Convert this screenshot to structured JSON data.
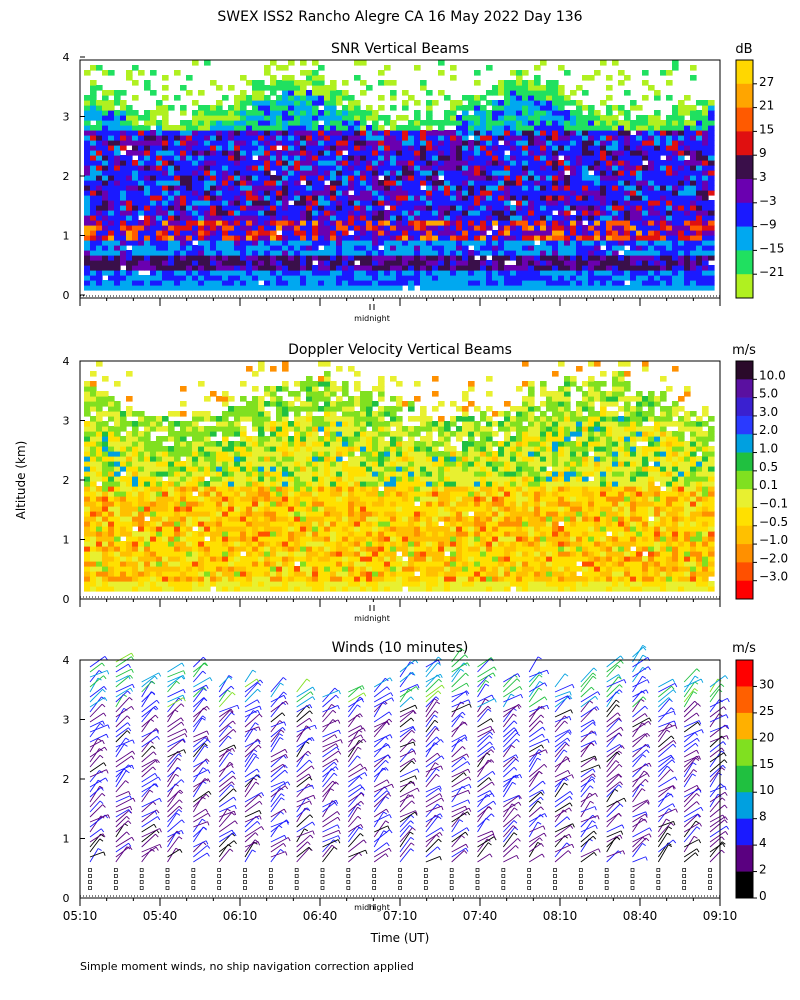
{
  "title": "SWEX ISS2 Rancho Alegre CA  16 May 2022 Day 136",
  "ylabel": "Altitude (km)",
  "xlabel": "Time (UT)",
  "midnight_label": "midnight",
  "footnote": "Simple moment winds, no ship navigation correction applied",
  "chart_data": [
    {
      "type": "heatmap",
      "title": "SNR Vertical Beams",
      "ylim": [
        0,
        4
      ],
      "yticks": [
        "0",
        "1",
        "2",
        "3",
        "4"
      ],
      "colorbar": {
        "unit": "dB",
        "labels": [
          "27",
          "21",
          "15",
          "9",
          "3",
          "−3",
          "−9",
          "−15",
          "−21"
        ],
        "colors": [
          "#ffd700",
          "#ffa500",
          "#ff5a00",
          "#e01010",
          "#3a0f4a",
          "#6a00b0",
          "#1a1aff",
          "#00a8f0",
          "#20e060",
          "#b0f020"
        ]
      }
    },
    {
      "type": "heatmap",
      "title": "Doppler Velocity Vertical Beams",
      "ylim": [
        0,
        4
      ],
      "yticks": [
        "0",
        "1",
        "2",
        "3",
        "4"
      ],
      "colorbar": {
        "unit": "m/s",
        "labels": [
          "10.0",
          "5.0",
          "3.0",
          "2.0",
          "1.0",
          "0.5",
          "0.1",
          "−0.1",
          "−0.5",
          "−1.0",
          "−2.0",
          "−3.0"
        ],
        "colors": [
          "#2a0a2a",
          "#5a10a0",
          "#3a20d0",
          "#2a3aff",
          "#00a0e0",
          "#20c040",
          "#80e020",
          "#e8f030",
          "#ffe000",
          "#ffc000",
          "#ff9000",
          "#ff5000",
          "#ff0000"
        ]
      }
    },
    {
      "type": "barbs",
      "title": "Winds (10 minutes)",
      "ylim": [
        0,
        4
      ],
      "yticks": [
        "0",
        "1",
        "2",
        "3",
        "4"
      ],
      "xticks": [
        "05:10",
        "05:40",
        "06:10",
        "06:40",
        "07:10",
        "07:40",
        "08:10",
        "08:40",
        "09:10"
      ],
      "colorbar": {
        "unit": "m/s",
        "labels": [
          "30",
          "25",
          "20",
          "15",
          "10",
          "8",
          "4",
          "2",
          "0"
        ],
        "colors": [
          "#ff0000",
          "#ff6000",
          "#ffb000",
          "#80e020",
          "#20c040",
          "#00a0e0",
          "#1a1aff",
          "#5a0080",
          "#000000"
        ]
      },
      "x_profiles": [
        "05:10",
        "05:20",
        "05:30",
        "05:40",
        "05:50",
        "06:00",
        "06:10",
        "06:20",
        "06:30",
        "06:40",
        "06:50",
        "07:00",
        "07:10",
        "07:20",
        "07:30",
        "07:40",
        "07:50",
        "08:00",
        "08:10",
        "08:20",
        "08:30",
        "08:40",
        "08:50",
        "09:00",
        "09:10"
      ],
      "max_height_km": [
        3.9,
        4.0,
        3.7,
        3.8,
        3.9,
        3.6,
        3.7,
        3.5,
        3.5,
        3.4,
        3.5,
        3.6,
        3.8,
        3.9,
        4.0,
        3.9,
        3.7,
        3.8,
        3.6,
        3.7,
        3.9,
        4.1,
        3.6,
        3.7,
        3.6
      ]
    }
  ]
}
